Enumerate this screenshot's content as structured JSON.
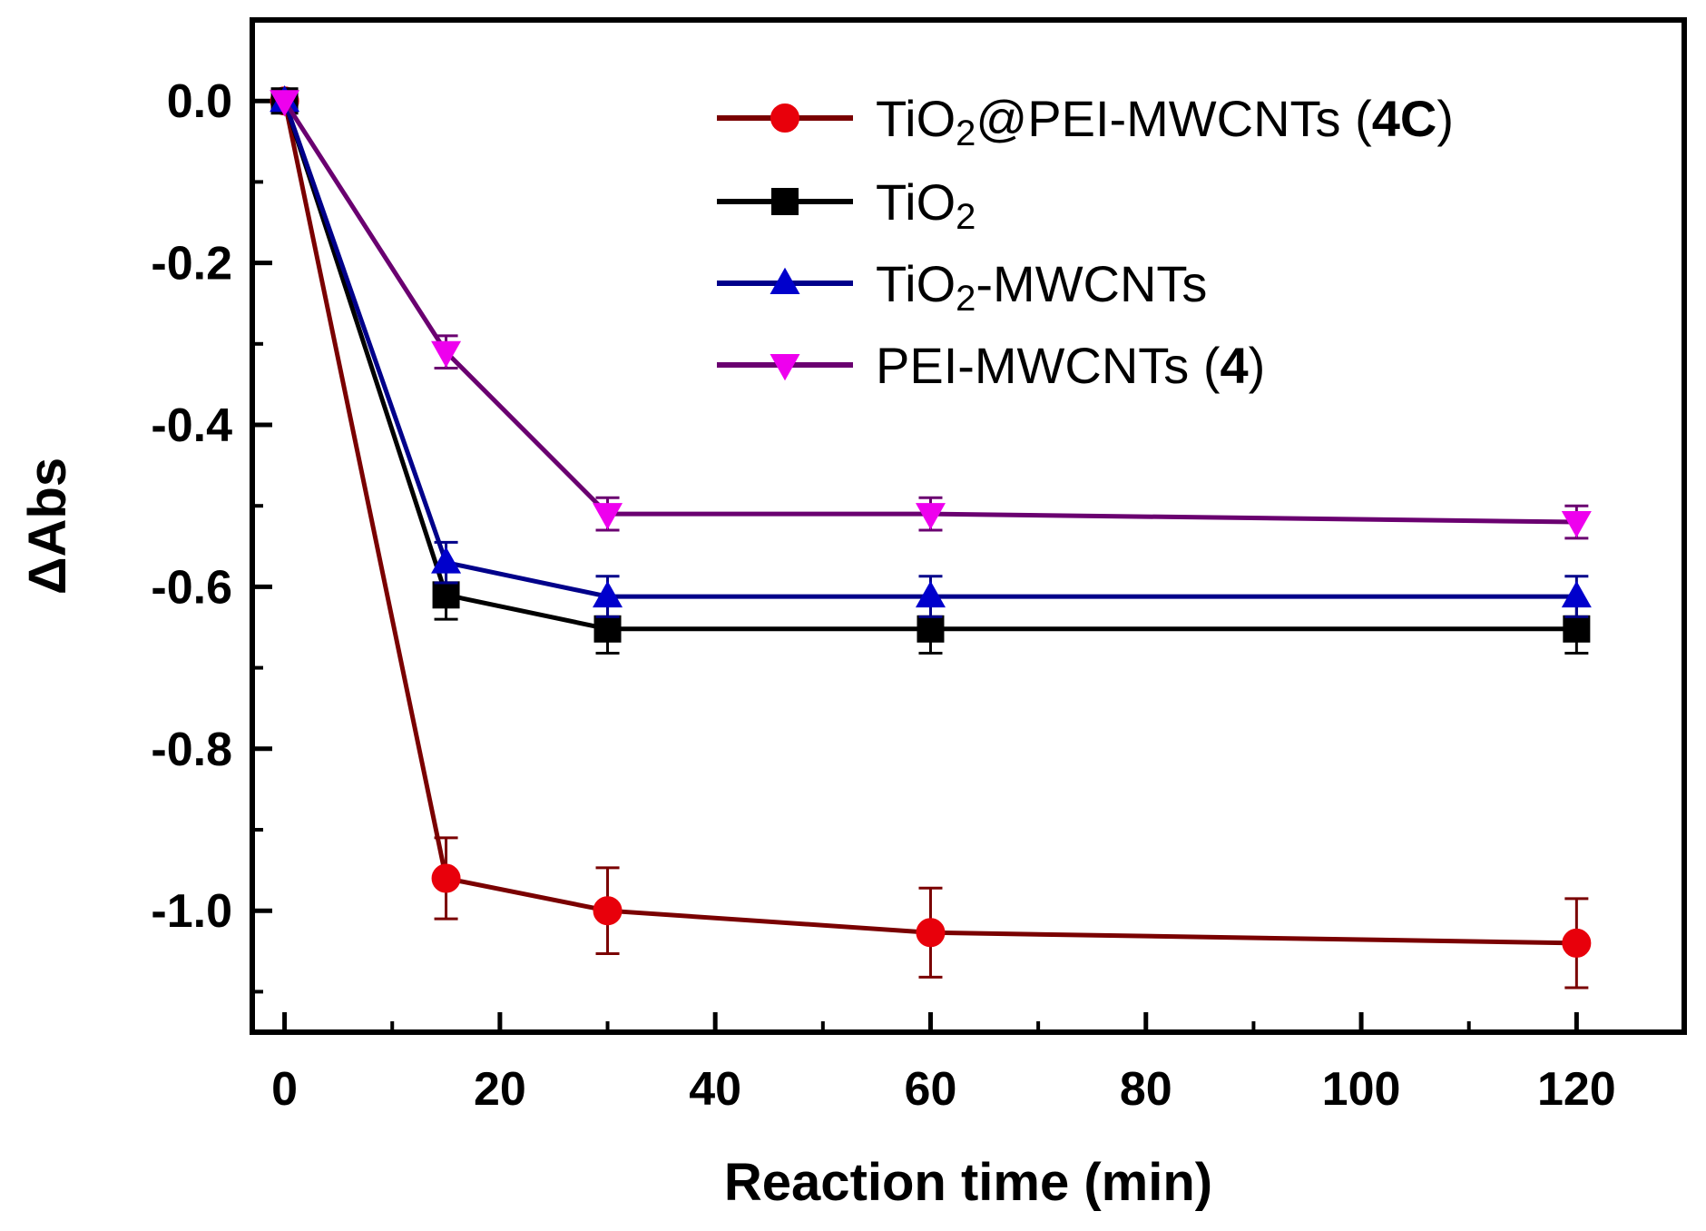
{
  "chart_data": {
    "type": "line",
    "title": "",
    "xlabel": "Reaction time (min)",
    "ylabel": "ΔAbs",
    "xlim": [
      -3,
      130
    ],
    "ylim": [
      -1.15,
      0.1
    ],
    "x_ticks": [
      "0",
      "20",
      "40",
      "60",
      "80",
      "100",
      "120"
    ],
    "y_ticks": [
      "0.0",
      "-0.2",
      "-0.4",
      "-0.6",
      "-0.8",
      "-1.0"
    ],
    "grid": false,
    "legend_position": "top-right",
    "x": [
      0,
      15,
      30,
      60,
      120
    ],
    "series": [
      {
        "name": "TiO₂@PEI-MWCNTs (4C)",
        "legend_parts": [
          "TiO",
          "2",
          "@PEI-MWCNTs (",
          "4C",
          ")"
        ],
        "marker": "circle",
        "color": "#e8000b",
        "line_color": "#7a0000",
        "y": [
          0.0,
          -0.96,
          -1.0,
          -1.027,
          -1.04
        ],
        "err": [
          0.0,
          0.05,
          0.053,
          0.055,
          0.055
        ]
      },
      {
        "name": "TiO₂",
        "legend_parts": [
          "TiO",
          "2"
        ],
        "marker": "square",
        "color": "#000000",
        "line_color": "#000000",
        "y": [
          0.0,
          -0.61,
          -0.652,
          -0.652,
          -0.652
        ],
        "err": [
          0.0,
          0.03,
          0.03,
          0.03,
          0.03
        ]
      },
      {
        "name": "TiO₂-MWCNTs",
        "legend_parts": [
          "TiO",
          "2",
          "-MWCNTs"
        ],
        "marker": "triangle-up",
        "color": "#0000cc",
        "line_color": "#00008a",
        "y": [
          0.0,
          -0.57,
          -0.612,
          -0.612,
          -0.612
        ],
        "err": [
          0.0,
          0.025,
          0.025,
          0.025,
          0.025
        ]
      },
      {
        "name": "PEI-MWCNTs (4)",
        "legend_parts": [
          "PEI-MWCNTs (",
          "4",
          ")"
        ],
        "marker": "triangle-down",
        "color": "#ee00ee",
        "line_color": "#6a0070",
        "y": [
          0.0,
          -0.31,
          -0.51,
          -0.51,
          -0.52
        ],
        "err": [
          0.0,
          0.02,
          0.02,
          0.02,
          0.02
        ]
      }
    ]
  }
}
